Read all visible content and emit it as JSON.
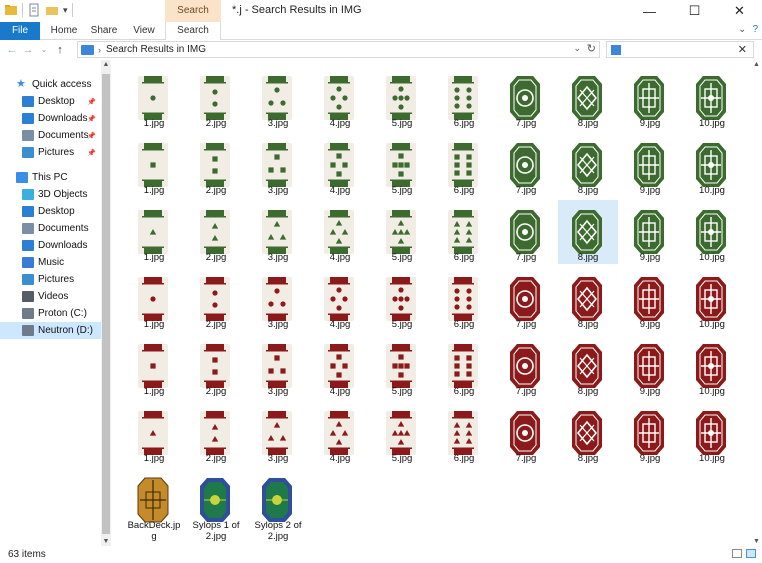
{
  "window": {
    "title": "*.j - Search Results in IMG",
    "context_tab": "Search Tools",
    "controls": {
      "minimize": "—",
      "maximize": "☐",
      "close": "✕"
    }
  },
  "ribbon": {
    "tabs": [
      "File",
      "Home",
      "Share",
      "View",
      "Search"
    ]
  },
  "address": {
    "path": "Search Results in IMG",
    "search_value": ""
  },
  "nav": {
    "quick_access": "Quick access",
    "items": [
      {
        "label": "Quick access",
        "icon": "star-icon",
        "color": "#3a8ee6",
        "indent": 0,
        "pin": false
      },
      {
        "label": "Desktop",
        "icon": "desktop-icon",
        "color": "#2b7fd4",
        "indent": 1,
        "pin": true
      },
      {
        "label": "Downloads",
        "icon": "downloads-icon",
        "color": "#2b7fd4",
        "indent": 1,
        "pin": true
      },
      {
        "label": "Documents",
        "icon": "documents-icon",
        "color": "#7a8fa6",
        "indent": 1,
        "pin": true
      },
      {
        "label": "Pictures",
        "icon": "pictures-icon",
        "color": "#3b8fd0",
        "indent": 1,
        "pin": true
      },
      {
        "label": "This PC",
        "icon": "computer-icon",
        "color": "#3a8ee6",
        "indent": 0,
        "pin": false
      },
      {
        "label": "3D Objects",
        "icon": "cube-icon",
        "color": "#3bb0e0",
        "indent": 1,
        "pin": false
      },
      {
        "label": "Desktop",
        "icon": "desktop-icon",
        "color": "#2b7fd4",
        "indent": 1,
        "pin": false
      },
      {
        "label": "Documents",
        "icon": "documents-icon",
        "color": "#7a8fa6",
        "indent": 1,
        "pin": false
      },
      {
        "label": "Downloads",
        "icon": "downloads-icon",
        "color": "#2b7fd4",
        "indent": 1,
        "pin": false
      },
      {
        "label": "Music",
        "icon": "music-icon",
        "color": "#3a7bd5",
        "indent": 1,
        "pin": false
      },
      {
        "label": "Pictures",
        "icon": "pictures-icon",
        "color": "#3b8fd0",
        "indent": 1,
        "pin": false
      },
      {
        "label": "Videos",
        "icon": "videos-icon",
        "color": "#555c66",
        "indent": 1,
        "pin": false
      },
      {
        "label": "Proton (C:)",
        "icon": "drive-icon",
        "color": "#6f7b88",
        "indent": 1,
        "pin": false
      },
      {
        "label": "Neutron (D:)",
        "icon": "drive-icon",
        "color": "#6f7b88",
        "indent": 1,
        "pin": false,
        "selected": true
      }
    ]
  },
  "files": {
    "rows": [
      {
        "suit": "green",
        "shape": "dot",
        "labels": [
          "1.jpg",
          "2.jpg",
          "3.jpg",
          "4.jpg",
          "5.jpg",
          "6.jpg",
          "7.jpg",
          "8.jpg",
          "9.jpg",
          "10.jpg"
        ]
      },
      {
        "suit": "green",
        "shape": "square",
        "labels": [
          "1.jpg",
          "2.jpg",
          "3.jpg",
          "4.jpg",
          "5.jpg",
          "6.jpg",
          "7.jpg",
          "8.jpg",
          "9.jpg",
          "10.jpg"
        ]
      },
      {
        "suit": "green",
        "shape": "triangle",
        "labels": [
          "1.jpg",
          "2.jpg",
          "3.jpg",
          "4.jpg",
          "5.jpg",
          "6.jpg",
          "7.jpg",
          "8.jpg",
          "9.jpg",
          "10.jpg"
        ]
      },
      {
        "suit": "red",
        "shape": "dot",
        "labels": [
          "1.jpg",
          "2.jpg",
          "3.jpg",
          "4.jpg",
          "5.jpg",
          "6.jpg",
          "7.jpg",
          "8.jpg",
          "9.jpg",
          "10.jpg"
        ]
      },
      {
        "suit": "red",
        "shape": "square",
        "labels": [
          "1.jpg",
          "2.jpg",
          "3.jpg",
          "4.jpg",
          "5.jpg",
          "6.jpg",
          "7.jpg",
          "8.jpg",
          "9.jpg",
          "10.jpg"
        ]
      },
      {
        "suit": "red",
        "shape": "triangle",
        "labels": [
          "1.jpg",
          "2.jpg",
          "3.jpg",
          "4.jpg",
          "5.jpg",
          "6.jpg",
          "7.jpg",
          "8.jpg",
          "9.jpg",
          "10.jpg"
        ]
      }
    ],
    "selected": {
      "row": 2,
      "col": 7
    },
    "extra": [
      {
        "label_line1": "BackDeck.jp",
        "label_line2": "g",
        "kind": "back"
      },
      {
        "label_line1": "Sylops 1 of",
        "label_line2": "2.jpg",
        "kind": "sylop"
      },
      {
        "label_line1": "Sylops 2 of",
        "label_line2": "2.jpg",
        "kind": "sylop"
      }
    ],
    "colors": {
      "green": "#3d6b2f",
      "red": "#8c1a1a",
      "cream": "#f1ece4",
      "back_gold": "#c58b2a",
      "sylop_blue": "#2f4f9a"
    }
  },
  "status": {
    "count": "63 items"
  }
}
